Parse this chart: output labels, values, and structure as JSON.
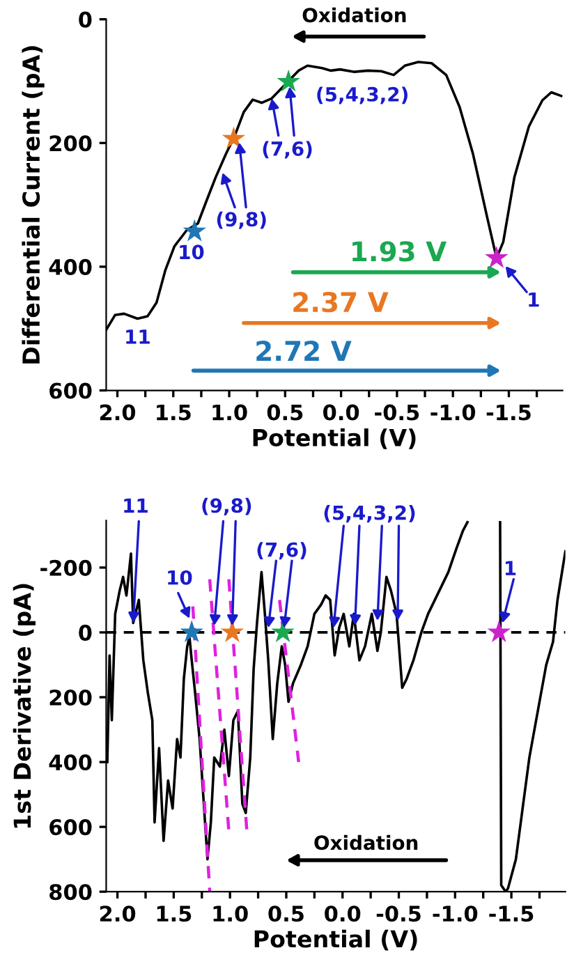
{
  "chart_data": [
    {
      "type": "line",
      "xlabel": "Potential (V)",
      "ylabel": "Differential Current (pA)",
      "xlim": [
        2.1,
        -1.98
      ],
      "ylim": [
        600,
        0
      ],
      "xticks": [
        {
          "value": 2.0,
          "label": "2.0"
        },
        {
          "value": 1.75,
          "label": null
        },
        {
          "value": 1.5,
          "label": "1.5"
        },
        {
          "value": 1.25,
          "label": null
        },
        {
          "value": 1.0,
          "label": "1.0"
        },
        {
          "value": 0.75,
          "label": null
        },
        {
          "value": 0.5,
          "label": "0.5"
        },
        {
          "value": 0.25,
          "label": null
        },
        {
          "value": 0.0,
          "label": "0.0"
        },
        {
          "value": -0.25,
          "label": null
        },
        {
          "value": -0.5,
          "label": "-0.5"
        },
        {
          "value": -0.75,
          "label": null
        },
        {
          "value": -1.0,
          "label": "-1.0"
        },
        {
          "value": -1.25,
          "label": null
        },
        {
          "value": -1.5,
          "label": "-1.5"
        },
        {
          "value": -1.75,
          "label": null
        }
      ],
      "yticks": [
        0,
        200,
        400,
        600
      ],
      "series": [
        {
          "color": "#000000",
          "x": [
            2.1,
            2.02,
            1.94,
            1.82,
            1.73,
            1.65,
            1.57,
            1.49,
            1.38,
            1.28,
            1.2,
            1.12,
            1.03,
            0.95,
            0.87,
            0.79,
            0.71,
            0.62,
            0.54,
            0.46,
            0.38,
            0.3,
            0.17,
            0.09,
            0.01,
            -0.12,
            -0.24,
            -0.36,
            -0.47,
            -0.57,
            -0.69,
            -0.81,
            -0.94,
            -1.06,
            -1.18,
            -1.31,
            -1.39,
            -1.45,
            -1.55,
            -1.68,
            -1.8,
            -1.88,
            -1.97
          ],
          "values": [
            502,
            478,
            476,
            484,
            480,
            458,
            405,
            367,
            341,
            330,
            292,
            255,
            218,
            188,
            150,
            130,
            135,
            128,
            113,
            98,
            83,
            75,
            79,
            83,
            81,
            85,
            83,
            84,
            90,
            75,
            69,
            71,
            90,
            142,
            218,
            323,
            386,
            360,
            255,
            173,
            131,
            118,
            124
          ]
        },
        {
          "type": "scatter",
          "marker": "star",
          "x": [
            1.31,
            0.96,
            0.47,
            -1.39
          ],
          "values": [
            343,
            193,
            101,
            386
          ],
          "colors": [
            "#1f77b4",
            "#e87722",
            "#1aa850",
            "#cc22cc"
          ]
        }
      ],
      "annotations": [
        "Oxidation",
        "1.93 V",
        "2.37 V",
        "2.72 V",
        "11",
        "10",
        {
          "text": "(9,8)",
          "x": 1.06,
          "y": 248
        },
        {
          "text": "(7,6)",
          "x": 0.62,
          "y": 128
        },
        "(5,4,3,2)",
        {
          "text": "1",
          "x": -1.47,
          "y": 399
        }
      ]
    },
    {
      "type": "line",
      "xlabel": "Potential (V)",
      "ylabel": "1st Derivative (pA)",
      "xlim": [
        2.1,
        -1.98
      ],
      "ylim": [
        800,
        -345
      ],
      "xticks": [
        {
          "value": 2.0,
          "label": "2.0"
        },
        {
          "value": 1.75,
          "label": null
        },
        {
          "value": 1.5,
          "label": "1.5"
        },
        {
          "value": 1.25,
          "label": null
        },
        {
          "value": 1.0,
          "label": "1.0"
        },
        {
          "value": 0.75,
          "label": null
        },
        {
          "value": 0.5,
          "label": "0.5"
        },
        {
          "value": 0.25,
          "label": null
        },
        {
          "value": 0.0,
          "label": "0.0"
        },
        {
          "value": -0.25,
          "label": null
        },
        {
          "value": -0.5,
          "label": "-0.5"
        },
        {
          "value": -0.75,
          "label": null
        },
        {
          "value": -1.0,
          "label": "-1.0"
        },
        {
          "value": -1.25,
          "label": null
        },
        {
          "value": -1.5,
          "label": "-1.5"
        },
        {
          "value": -1.75,
          "label": null
        }
      ],
      "yticks": [
        {
          "value": -200,
          "label": "-200"
        },
        0,
        200,
        400,
        600,
        800
      ],
      "ref_lines": [
        {
          "axis": "y",
          "value": 0,
          "color": "#000000",
          "line_style": "dashed"
        }
      ],
      "series": [
        {
          "color": "#000000",
          "x": [
            2.09,
            2.07,
            2.05,
            2.02,
            1.98,
            1.95,
            1.92,
            1.88,
            1.86,
            1.81,
            1.77,
            1.73,
            1.69,
            1.67,
            1.63,
            1.59,
            1.55,
            1.51,
            1.47,
            1.44,
            1.41,
            1.38,
            1.36,
            1.34,
            1.31,
            1.27,
            1.23,
            1.2,
            1.17,
            1.14,
            1.09,
            1.05,
            1.01,
            0.97,
            0.93,
            0.89,
            0.86,
            0.82,
            0.79,
            0.76,
            0.72,
            0.69,
            0.66,
            0.62,
            0.58,
            0.54,
            0.51,
            0.48,
            0.44,
            0.37,
            0.31,
            0.25,
            0.19,
            0.15,
            0.11,
            0.07,
            0.03,
            -0.01,
            -0.06,
            -0.1,
            -0.15,
            -0.2,
            -0.26,
            -0.31,
            -0.34,
            -0.39,
            -0.43,
            -0.48,
            -0.53,
            -0.57,
            -0.63,
            -0.7,
            -0.76,
            -0.82,
            -0.88,
            -0.94,
            -1.01,
            -1.07,
            -1.11,
            -1.25,
            -1.4,
            -1.41,
            -1.45,
            -1.47,
            -1.54,
            -1.6,
            -1.66,
            -1.75,
            -1.81,
            -1.87,
            -1.91,
            -1.95,
            -1.98
          ],
          "values": [
            400,
            71,
            271,
            -57,
            -129,
            -171,
            -114,
            -243,
            -29,
            -100,
            86,
            186,
            271,
            586,
            357,
            643,
            457,
            543,
            329,
            386,
            143,
            43,
            14,
            86,
            186,
            329,
            543,
            700,
            586,
            386,
            414,
            300,
            443,
            271,
            243,
            529,
            557,
            386,
            114,
            -29,
            -186,
            -57,
            86,
            329,
            157,
            43,
            100,
            214,
            157,
            100,
            43,
            -57,
            -86,
            -114,
            -100,
            71,
            -14,
            -57,
            43,
            -57,
            86,
            43,
            -57,
            57,
            0,
            -171,
            -129,
            -57,
            171,
            143,
            86,
            0,
            -57,
            -100,
            -143,
            -186,
            -257,
            -314,
            -340,
            null,
            -340,
            780,
            800,
            790,
            700,
            543,
            386,
            214,
            100,
            29,
            -100,
            -186,
            -250
          ]
        },
        {
          "type": "line",
          "line_style": "dashed",
          "color": "#e020e0",
          "x": [
            1.33,
            1.18
          ],
          "values": [
            -80,
            800
          ]
        },
        {
          "type": "line",
          "line_style": "dashed",
          "color": "#e020e0",
          "x": [
            1.18,
            1.01
          ],
          "values": [
            -164,
            614
          ]
        },
        {
          "type": "line",
          "line_style": "dashed",
          "color": "#e020e0",
          "x": [
            1.01,
            0.85
          ],
          "values": [
            -164,
            614
          ]
        },
        {
          "type": "line",
          "line_style": "dashed",
          "color": "#e020e0",
          "x": [
            0.56,
            0.39
          ],
          "values": [
            -100,
            400
          ]
        },
        {
          "type": "scatter",
          "marker": "star",
          "x": [
            1.34,
            0.98,
            0.53,
            -1.39
          ],
          "values": [
            0,
            0,
            0,
            0
          ],
          "colors": [
            "#1f77b4",
            "#e87722",
            "#1aa850",
            "#cc22cc"
          ]
        }
      ],
      "annotations": [
        "Oxidation",
        {
          "text": "11",
          "x": 1.86,
          "y": -29
        },
        {
          "text": "10",
          "x": 1.36,
          "y": -43
        },
        {
          "text": "(9,8)",
          "x": 1.14,
          "y": -21
        },
        {
          "text": "(7,6)",
          "x": 0.66,
          "y": -14
        },
        {
          "text": "(5,4,3,2)",
          "x": 0.08,
          "y": -14
        },
        {
          "text": "1",
          "x": -1.42,
          "y": -29
        }
      ]
    }
  ]
}
